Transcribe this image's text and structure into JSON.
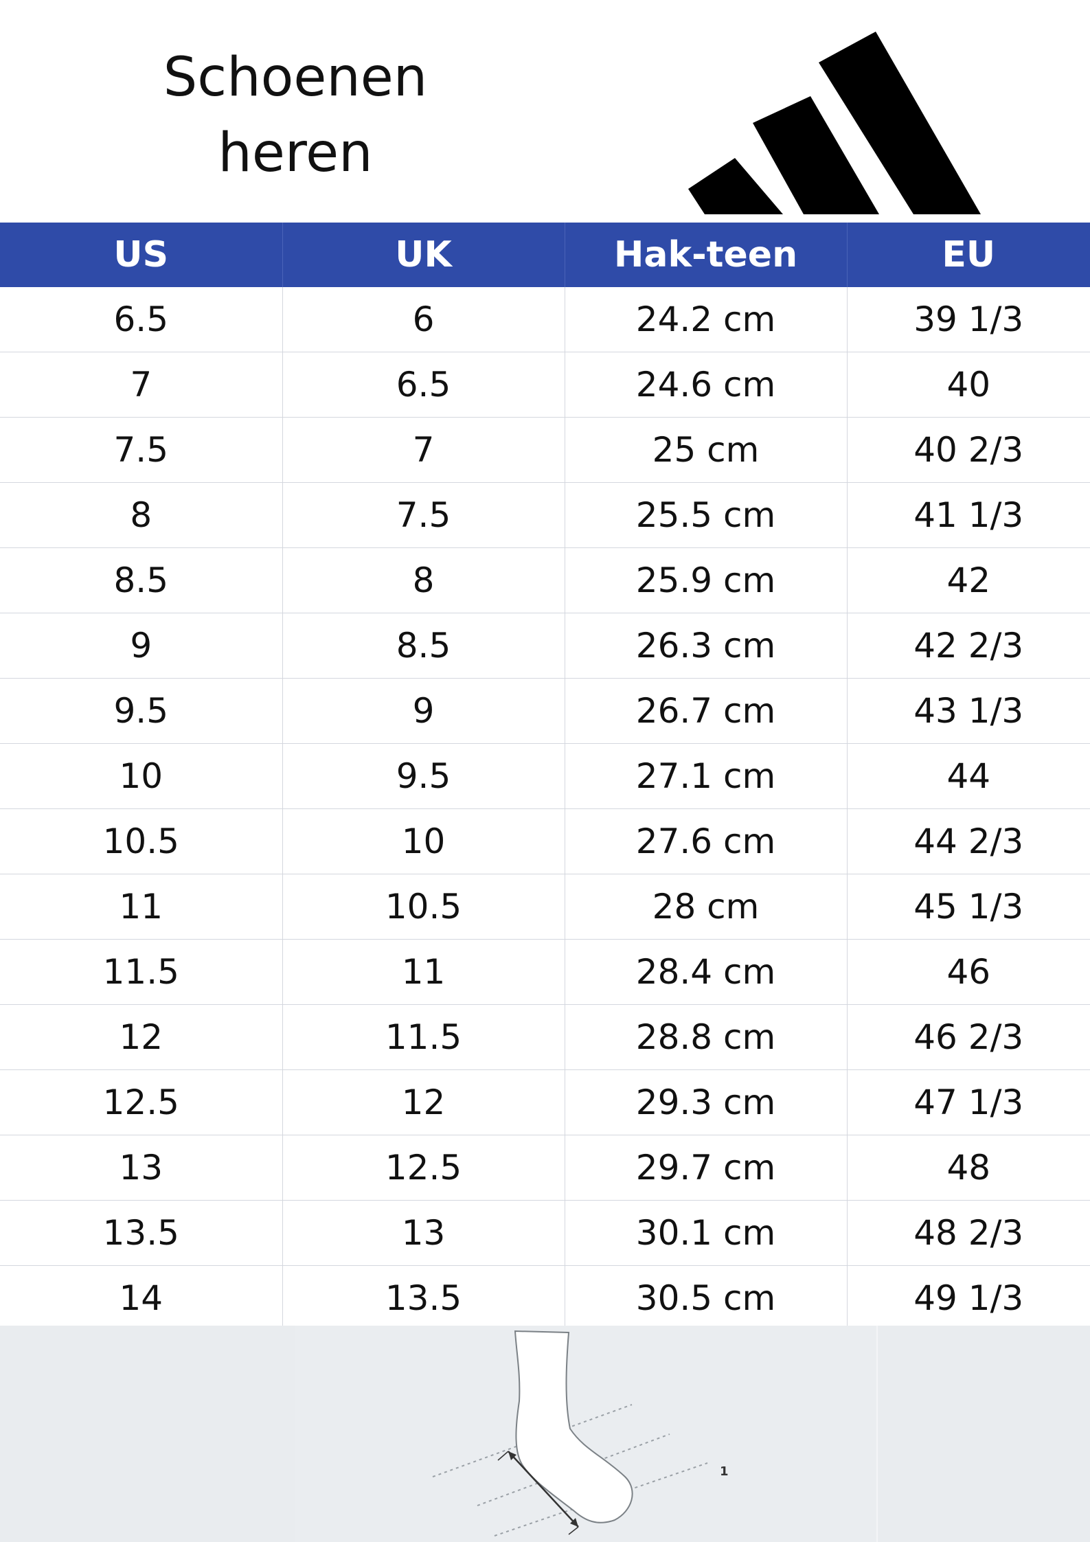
{
  "title": {
    "line1": "Schoenen",
    "line2": "heren"
  },
  "logo": {
    "icon": "adidas-three-stripes-logo",
    "color": "#000000"
  },
  "table": {
    "header_color": "#2f4ba8",
    "headers": [
      "US",
      "UK",
      "Hak-teen",
      "EU"
    ],
    "rows": [
      [
        "6.5",
        "6",
        "24.2 cm",
        "39 1/3"
      ],
      [
        "7",
        "6.5",
        "24.6 cm",
        "40"
      ],
      [
        "7.5",
        "7",
        "25 cm",
        "40 2/3"
      ],
      [
        "8",
        "7.5",
        "25.5 cm",
        "41 1/3"
      ],
      [
        "8.5",
        "8",
        "25.9 cm",
        "42"
      ],
      [
        "9",
        "8.5",
        "26.3 cm",
        "42 2/3"
      ],
      [
        "9.5",
        "9",
        "26.7 cm",
        "43 1/3"
      ],
      [
        "10",
        "9.5",
        "27.1 cm",
        "44"
      ],
      [
        "10.5",
        "10",
        "27.6 cm",
        "44 2/3"
      ],
      [
        "11",
        "10.5",
        "28 cm",
        "45 1/3"
      ],
      [
        "11.5",
        "11",
        "28.4 cm",
        "46"
      ],
      [
        "12",
        "11.5",
        "28.8 cm",
        "46 2/3"
      ],
      [
        "12.5",
        "12",
        "29.3 cm",
        "47 1/3"
      ],
      [
        "13",
        "12.5",
        "29.7 cm",
        "48"
      ],
      [
        "13.5",
        "13",
        "30.1 cm",
        "48 2/3"
      ],
      [
        "14",
        "13.5",
        "30.5 cm",
        "49 1/3"
      ]
    ]
  },
  "illustration": {
    "icon": "foot-measurement-icon",
    "label": "1"
  }
}
